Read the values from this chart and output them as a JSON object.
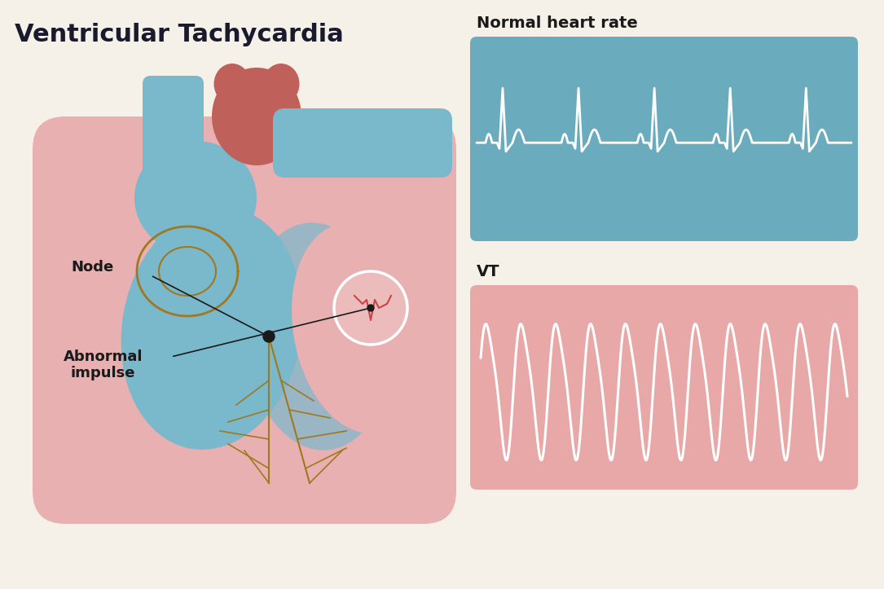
{
  "title": "Ventricular Tachycardia",
  "title_fontsize": 22,
  "title_color": "#1a1a2e",
  "bg_color": "#f5f0e8",
  "normal_label": "Normal heart rate",
  "vt_label": "VT",
  "normal_box_color": "#6aacbe",
  "vt_box_color": "#e8a8a8",
  "ecg_line_color": "#ffffff",
  "node_label": "Node",
  "abnormal_label": "Abnormal\nimpulse",
  "label_fontsize": 13,
  "label_color": "#1a1a1a",
  "heart_pink": "#e8b0b0",
  "heart_pink_light": "#f0c8c8",
  "heart_blue": "#7ab8cc",
  "heart_red": "#c0605a",
  "purkinje_color": "#a07820",
  "white_circle_color": "#ffffff"
}
